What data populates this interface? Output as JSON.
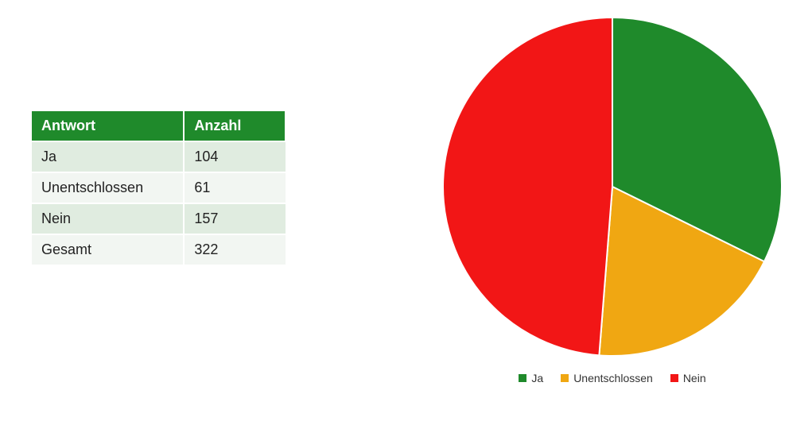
{
  "table": {
    "header_bg": "#1f8a2b",
    "header_text_color": "#ffffff",
    "row_bg_odd": "#e0ece0",
    "row_bg_even": "#f2f6f2",
    "border_color": "#ffffff",
    "font_size": 18,
    "columns": [
      "Antwort",
      "Anzahl"
    ],
    "rows": [
      [
        "Ja",
        "104"
      ],
      [
        "Unentschlossen",
        "61"
      ],
      [
        "Nein",
        "157"
      ],
      [
        "Gesamt",
        "322"
      ]
    ]
  },
  "pie_chart": {
    "type": "pie",
    "diameter": 430,
    "start_angle_deg": 0,
    "stroke_color": "#ffffff",
    "stroke_width": 2,
    "background_color": "#ffffff",
    "slices": [
      {
        "label": "Ja",
        "value": 104,
        "color": "#1f8a2b"
      },
      {
        "label": "Unentschlossen",
        "value": 61,
        "color": "#f0a712"
      },
      {
        "label": "Nein",
        "value": 157,
        "color": "#f21616"
      }
    ],
    "legend": {
      "position": "bottom",
      "font_size": 14,
      "swatch_size": 10,
      "text_color": "#333333"
    }
  }
}
